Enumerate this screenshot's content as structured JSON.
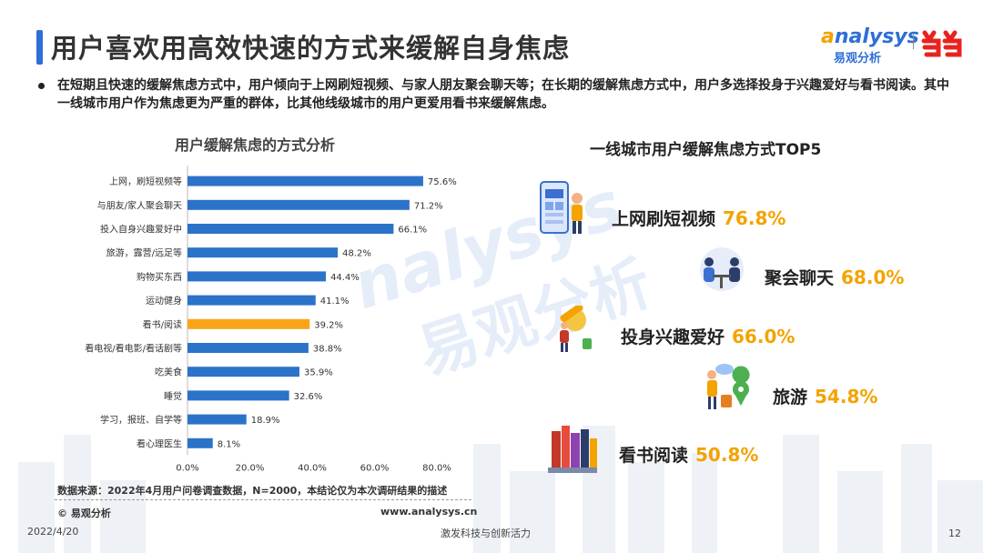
{
  "header": {
    "title": "用户喜欢用高效快速的方式来缓解自身焦虑",
    "logo_en": "nalysys",
    "logo_en_prefix": "a",
    "logo_cn": "易观分析"
  },
  "summary": "在短期且快速的缓解焦虑方式中，用户倾向于上网刷短视频、与家人朋友聚会聊天等；在长期的缓解焦虑方式中，用户多选择投身于兴趣爱好与看书阅读。其中一线城市用户作为焦虑更为严重的群体，比其他线级城市的用户更爱用看书来缓解焦虑。",
  "chart_data": {
    "type": "bar",
    "orientation": "horizontal",
    "title": "用户缓解焦虑的方式分析",
    "categories": [
      "上网，刷短视频等",
      "与朋友/家人聚会聊天",
      "投入自身兴趣爱好中",
      "旅游，露营/远足等",
      "购物买东西",
      "运动健身",
      "看书/阅读",
      "看电视/看电影/看话剧等",
      "吃美食",
      "睡觉",
      "学习，报班、自学等",
      "看心理医生"
    ],
    "values": [
      75.6,
      71.2,
      66.1,
      48.2,
      44.4,
      41.1,
      39.2,
      38.8,
      35.9,
      32.6,
      18.9,
      8.1
    ],
    "value_labels": [
      "75.6%",
      "71.2%",
      "66.1%",
      "48.2%",
      "44.4%",
      "41.1%",
      "39.2%",
      "38.8%",
      "35.9%",
      "32.6%",
      "18.9%",
      "8.1%"
    ],
    "highlight_index": 6,
    "xticks": [
      "0.0%",
      "20.0%",
      "40.0%",
      "60.0%",
      "80.0%"
    ],
    "xlim": [
      0,
      80
    ],
    "colors": {
      "bar": "#2b73c9",
      "highlight": "#f9a51a"
    }
  },
  "top5": {
    "title": "一线城市用户缓解焦虑方式TOP5",
    "items": [
      {
        "label": "上网刷短视频",
        "value": "76.8%",
        "icon": "phone-video-icon"
      },
      {
        "label": "聚会聊天",
        "value": "68.0%",
        "icon": "chatting-people-icon"
      },
      {
        "label": "投身兴趣爱好",
        "value": "66.0%",
        "icon": "hobby-icon"
      },
      {
        "label": "旅游",
        "value": "54.8%",
        "icon": "travel-icon"
      },
      {
        "label": "看书阅读",
        "value": "50.8%",
        "icon": "books-icon"
      }
    ],
    "value_color": "#f4a300"
  },
  "footer": {
    "source": "数据来源：2022年4月用户问卷调查数据，N=2000，本结论仅为本次调研结果的描述",
    "copyright": "© 易观分析",
    "url": "www.analysys.cn",
    "date": "2022/4/20",
    "slogan": "激发科技与创新活力",
    "page": "12"
  },
  "watermark": {
    "en": "nalysys",
    "cn": "易观分析"
  }
}
